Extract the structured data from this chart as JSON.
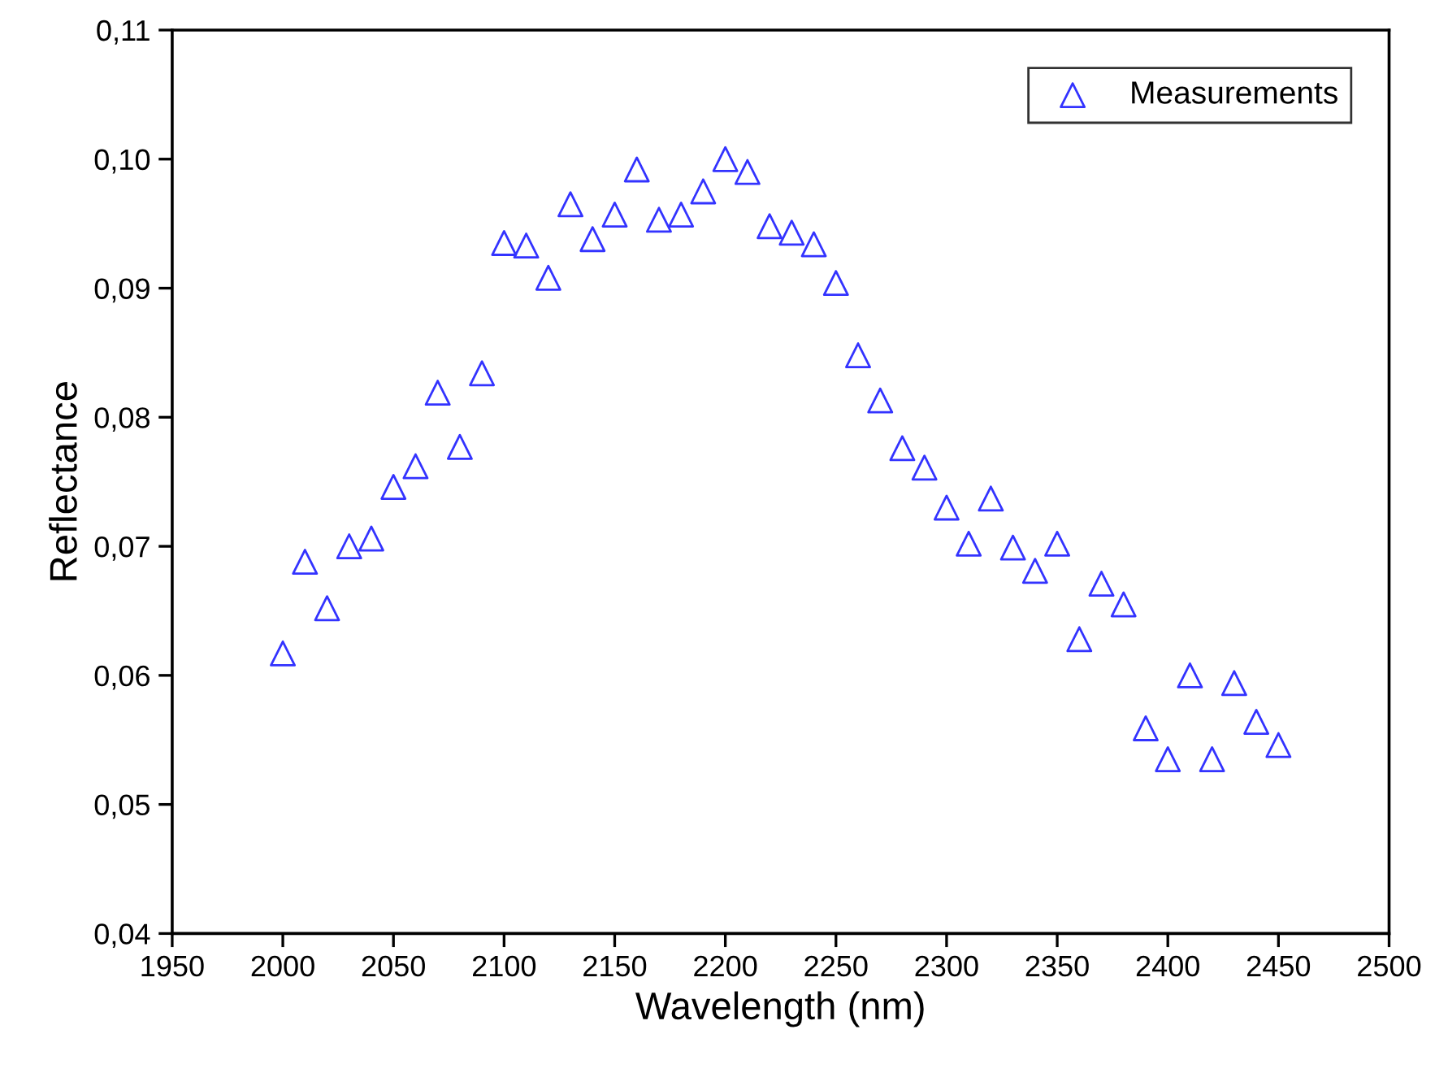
{
  "chart_data": {
    "type": "scatter",
    "xlabel": "Wavelength (nm)",
    "ylabel": "Reflectance",
    "xlim": [
      1950,
      2500
    ],
    "xticks": [
      1950,
      2000,
      2050,
      2100,
      2150,
      2200,
      2250,
      2300,
      2350,
      2400,
      2450,
      2500
    ],
    "ylim": [
      0.04,
      0.11
    ],
    "yticks": [
      {
        "value": 0.04,
        "label": "0,04"
      },
      {
        "value": 0.05,
        "label": "0,05"
      },
      {
        "value": 0.06,
        "label": "0,06"
      },
      {
        "value": 0.07,
        "label": "0,07"
      },
      {
        "value": 0.08,
        "label": "0,08"
      },
      {
        "value": 0.09,
        "label": "0,09"
      },
      {
        "value": 0.1,
        "label": "0,10"
      },
      {
        "value": 0.11,
        "label": "0,11"
      }
    ],
    "marker": "triangle",
    "legend": "top right",
    "grid": false,
    "series": [
      {
        "name": "Measurements",
        "color": "#3333ff",
        "x": [
          2000,
          2010,
          2020,
          2030,
          2040,
          2050,
          2060,
          2070,
          2080,
          2090,
          2100,
          2110,
          2120,
          2130,
          2140,
          2150,
          2160,
          2170,
          2180,
          2190,
          2200,
          2210,
          2220,
          2230,
          2240,
          2250,
          2260,
          2270,
          2280,
          2290,
          2300,
          2310,
          2320,
          2330,
          2340,
          2350,
          2360,
          2370,
          2380,
          2390,
          2400,
          2410,
          2420,
          2430,
          2440,
          2450
        ],
        "values": [
          0.0617,
          0.0688,
          0.0652,
          0.07,
          0.0706,
          0.0746,
          0.0762,
          0.0819,
          0.0777,
          0.0834,
          0.0935,
          0.0933,
          0.0908,
          0.0965,
          0.0938,
          0.0957,
          0.0992,
          0.0953,
          0.0957,
          0.0975,
          0.1,
          0.099,
          0.0948,
          0.0943,
          0.0934,
          0.0904,
          0.0848,
          0.0813,
          0.0776,
          0.0761,
          0.073,
          0.0702,
          0.0737,
          0.0699,
          0.0681,
          0.0702,
          0.0628,
          0.0671,
          0.0655,
          0.0559,
          0.0535,
          0.06,
          0.0535,
          0.0594,
          0.0564,
          0.0546
        ]
      }
    ]
  }
}
